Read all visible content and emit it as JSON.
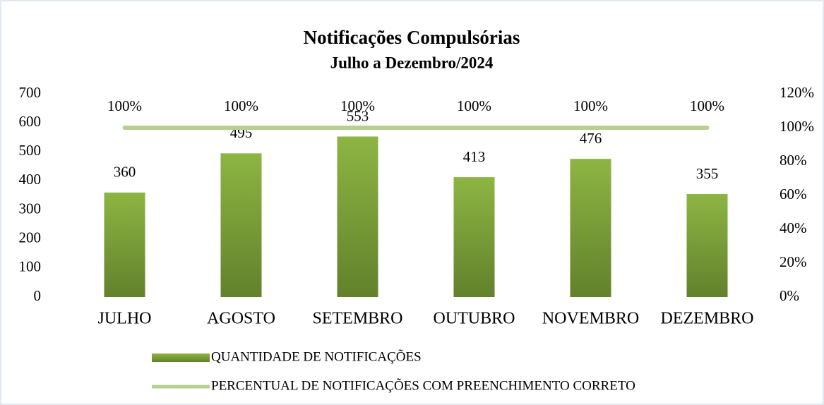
{
  "chart_data": {
    "type": "bar",
    "title": "Notificações Compulsórias",
    "subtitle": "Julho a Dezembro/2024",
    "categories": [
      "JULHO",
      "AGOSTO",
      "SETEMBRO",
      "OUTUBRO",
      "NOVEMBRO",
      "DEZEMBRO"
    ],
    "series": [
      {
        "name": "QUANTIDADE DE NOTIFICAÇÕES",
        "type": "bar",
        "color": "#8db543",
        "values": [
          360,
          495,
          553,
          413,
          476,
          355
        ]
      },
      {
        "name": "PERCENTUAL DE NOTIFICAÇÕES COM PREENCHIMENTO CORRETO",
        "type": "line",
        "axis": "y2",
        "color": "#b5d08f",
        "values": [
          100,
          100,
          100,
          100,
          100,
          100
        ],
        "value_labels": [
          "100%",
          "100%",
          "100%",
          "100%",
          "100%",
          "100%"
        ]
      }
    ],
    "ylim": [
      0,
      700
    ],
    "yticks": [
      0,
      100,
      200,
      300,
      400,
      500,
      600,
      700
    ],
    "y2lim": [
      0,
      120
    ],
    "y2ticks": [
      {
        "value": 0,
        "label": "0%"
      },
      {
        "value": 20,
        "label": "20%"
      },
      {
        "value": 40,
        "label": "40%"
      },
      {
        "value": 60,
        "label": "60%"
      },
      {
        "value": 80,
        "label": "80%"
      },
      {
        "value": 100,
        "label": "100%"
      },
      {
        "value": 120,
        "label": "120%"
      }
    ],
    "grid": false,
    "legend": "bottom"
  }
}
